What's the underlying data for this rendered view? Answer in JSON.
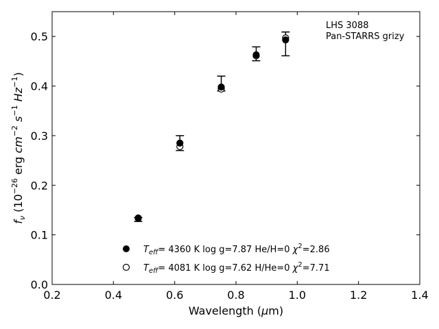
{
  "chart_data": {
    "type": "scatter",
    "xlabel": "Wavelength (μm)",
    "ylabel": "f_ν (10^−26 erg cm^−2 s^−1 Hz^−1)",
    "xlim": [
      0.2,
      1.4
    ],
    "ylim": [
      0.0,
      0.55
    ],
    "xticks": [
      0.2,
      0.4,
      0.6,
      0.8,
      1.0,
      1.2,
      1.4
    ],
    "xtick_labels": [
      "0.2",
      "0.4",
      "0.6",
      "0.8",
      "1.0",
      "1.2",
      "1.4"
    ],
    "yticks": [
      0.0,
      0.1,
      0.2,
      0.3,
      0.4,
      0.5
    ],
    "ytick_labels": [
      "0.0",
      "0.1",
      "0.2",
      "0.3",
      "0.4",
      "0.5"
    ],
    "grid": false,
    "annotation": [
      "LHS 3088",
      "Pan-STARRS grizy"
    ],
    "observed": {
      "x": [
        0.481,
        0.617,
        0.752,
        0.866,
        0.962
      ],
      "y": [
        0.131,
        0.285,
        0.405,
        0.465,
        0.485
      ],
      "err": [
        0.004,
        0.015,
        0.015,
        0.014,
        0.024
      ]
    },
    "series": [
      {
        "marker": "filled",
        "label": "T_eff= 4360 K log g=7.87 He/H=0 χ²=2.86",
        "x": [
          0.481,
          0.617,
          0.752,
          0.866,
          0.962
        ],
        "y": [
          0.133,
          0.285,
          0.398,
          0.463,
          0.493
        ]
      },
      {
        "marker": "open",
        "label": "T_eff= 4081 K log g=7.62 H/He=0 χ²=7.71",
        "x": [
          0.481,
          0.617,
          0.752,
          0.866,
          0.962
        ],
        "y": [
          0.134,
          0.278,
          0.394,
          0.461,
          0.497
        ]
      }
    ],
    "legend": [
      {
        "marker": "filled",
        "teff": "4360 K",
        "logg": "log g=7.87",
        "comp": "He/H=0",
        "chi2": "2.86"
      },
      {
        "marker": "open",
        "teff": "4081 K",
        "logg": "log g=7.62",
        "comp": "H/He=0",
        "chi2": "7.71"
      }
    ]
  }
}
